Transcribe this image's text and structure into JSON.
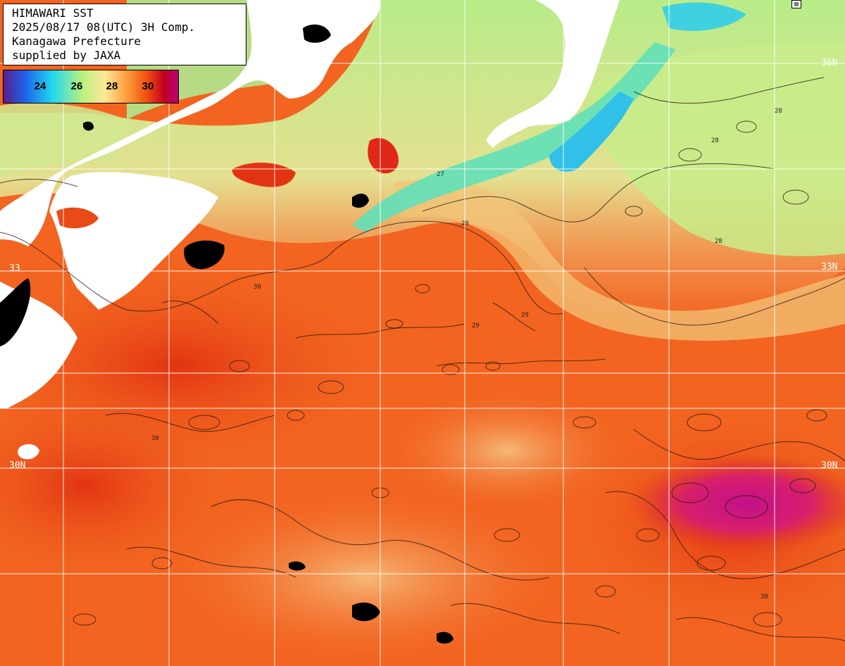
{
  "title": {
    "line1": "HIMAWARI SST",
    "line2": "2025/08/17 08(UTC) 3H Comp.",
    "line3": "Kanagawa Prefecture",
    "line4": "supplied by JAXA"
  },
  "legend": {
    "ticks": [
      "24",
      "26",
      "28",
      "30"
    ],
    "colors": [
      "#5a1e8c",
      "#1f5fe8",
      "#20d8f0",
      "#b8f080",
      "#ffe898",
      "#ffa040",
      "#f05010",
      "#c00020",
      "#b8007a"
    ]
  },
  "map_labels": {
    "lat_33_right": "33N",
    "lat_30_left": "30N",
    "lat_30_right": "30N",
    "lat_36_right": "36N",
    "lat_33_left": "33"
  },
  "contour_labels": [
    "28",
    "29",
    "27",
    "30",
    "28",
    "29",
    "30",
    "28",
    "29",
    "30"
  ],
  "colors": {
    "land": "#ffffff",
    "cloud": "#000000",
    "grid": "#ffffff",
    "sea_warm": "#f26420",
    "sea_hot": "#e03a14",
    "sea_hottest": "#c4147a",
    "sea_mild": "#f8a55a",
    "sea_cool": "#e8d888",
    "sea_cooler": "#b8e890",
    "sea_cold": "#70e8b0",
    "sea_coldest": "#30c8e8"
  }
}
